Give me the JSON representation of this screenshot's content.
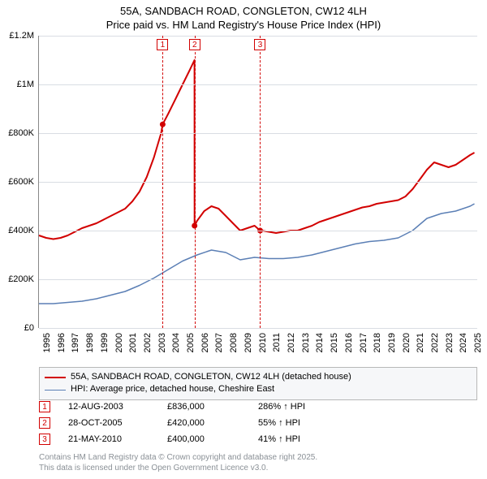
{
  "title": {
    "line1": "55A, SANDBACH ROAD, CONGLETON, CW12 4LH",
    "line2": "Price paid vs. HM Land Registry's House Price Index (HPI)"
  },
  "chart": {
    "type": "line",
    "background_color": "#ffffff",
    "stripe_color": "#edf1f6",
    "grid_color": "#d9dde3",
    "axis_color": "#888888",
    "x": {
      "min": 1995,
      "max": 2025.5,
      "ticks": [
        1995,
        1996,
        1997,
        1998,
        1999,
        2000,
        2001,
        2002,
        2003,
        2004,
        2005,
        2006,
        2007,
        2008,
        2009,
        2010,
        2011,
        2012,
        2013,
        2014,
        2015,
        2016,
        2017,
        2018,
        2019,
        2020,
        2021,
        2022,
        2023,
        2024,
        2025
      ],
      "tick_labels": [
        "1995",
        "1996",
        "1997",
        "1998",
        "1999",
        "2000",
        "2001",
        "2002",
        "2003",
        "2004",
        "2005",
        "2006",
        "2007",
        "2008",
        "2009",
        "2010",
        "2011",
        "2012",
        "2013",
        "2014",
        "2015",
        "2016",
        "2017",
        "2018",
        "2019",
        "2020",
        "2021",
        "2022",
        "2023",
        "2024",
        "2025"
      ],
      "label_fontsize": 11,
      "label_rotation": -90
    },
    "y": {
      "min": 0,
      "max": 1200000,
      "ticks": [
        0,
        200000,
        400000,
        600000,
        800000,
        1000000,
        1200000
      ],
      "tick_labels": [
        "£0",
        "£200K",
        "£400K",
        "£600K",
        "£800K",
        "£1M",
        "£1.2M"
      ],
      "label_fontsize": 11
    },
    "series": [
      {
        "id": "property",
        "label": "55A, SANDBACH ROAD, CONGLETON, CW12 4LH (detached house)",
        "color": "#d20000",
        "line_width": 2,
        "data": [
          [
            1995.0,
            380000
          ],
          [
            1995.5,
            370000
          ],
          [
            1996.0,
            365000
          ],
          [
            1996.5,
            370000
          ],
          [
            1997.0,
            380000
          ],
          [
            1997.5,
            395000
          ],
          [
            1998.0,
            410000
          ],
          [
            1998.5,
            420000
          ],
          [
            1999.0,
            430000
          ],
          [
            1999.5,
            445000
          ],
          [
            2000.0,
            460000
          ],
          [
            2000.5,
            475000
          ],
          [
            2001.0,
            490000
          ],
          [
            2001.5,
            520000
          ],
          [
            2002.0,
            560000
          ],
          [
            2002.5,
            620000
          ],
          [
            2003.0,
            700000
          ],
          [
            2003.5,
            800000
          ],
          [
            2003.61,
            836000
          ],
          [
            2004.0,
            880000
          ],
          [
            2004.5,
            940000
          ],
          [
            2005.0,
            1000000
          ],
          [
            2005.5,
            1060000
          ],
          [
            2005.82,
            1100000
          ],
          [
            2005.83,
            420000
          ],
          [
            2006.0,
            440000
          ],
          [
            2006.5,
            480000
          ],
          [
            2007.0,
            500000
          ],
          [
            2007.5,
            490000
          ],
          [
            2008.0,
            460000
          ],
          [
            2008.5,
            430000
          ],
          [
            2009.0,
            400000
          ],
          [
            2009.5,
            410000
          ],
          [
            2010.0,
            420000
          ],
          [
            2010.39,
            400000
          ],
          [
            2010.5,
            400000
          ],
          [
            2011.0,
            395000
          ],
          [
            2011.5,
            390000
          ],
          [
            2012.0,
            395000
          ],
          [
            2012.5,
            400000
          ],
          [
            2013.0,
            400000
          ],
          [
            2013.5,
            410000
          ],
          [
            2014.0,
            420000
          ],
          [
            2014.5,
            435000
          ],
          [
            2015.0,
            445000
          ],
          [
            2015.5,
            455000
          ],
          [
            2016.0,
            465000
          ],
          [
            2016.5,
            475000
          ],
          [
            2017.0,
            485000
          ],
          [
            2017.5,
            495000
          ],
          [
            2018.0,
            500000
          ],
          [
            2018.5,
            510000
          ],
          [
            2019.0,
            515000
          ],
          [
            2019.5,
            520000
          ],
          [
            2020.0,
            525000
          ],
          [
            2020.5,
            540000
          ],
          [
            2021.0,
            570000
          ],
          [
            2021.5,
            610000
          ],
          [
            2022.0,
            650000
          ],
          [
            2022.5,
            680000
          ],
          [
            2023.0,
            670000
          ],
          [
            2023.5,
            660000
          ],
          [
            2024.0,
            670000
          ],
          [
            2024.5,
            690000
          ],
          [
            2025.0,
            710000
          ],
          [
            2025.3,
            720000
          ]
        ],
        "markers": [
          {
            "x": 2003.61,
            "y": 836000
          },
          {
            "x": 2005.83,
            "y": 420000
          },
          {
            "x": 2010.39,
            "y": 400000
          }
        ]
      },
      {
        "id": "hpi",
        "label": "HPI: Average price, detached house, Cheshire East",
        "color": "#5b7fb5",
        "line_width": 1.5,
        "data": [
          [
            1995.0,
            100000
          ],
          [
            1996.0,
            100000
          ],
          [
            1997.0,
            105000
          ],
          [
            1998.0,
            110000
          ],
          [
            1999.0,
            120000
          ],
          [
            2000.0,
            135000
          ],
          [
            2001.0,
            150000
          ],
          [
            2002.0,
            175000
          ],
          [
            2003.0,
            205000
          ],
          [
            2004.0,
            240000
          ],
          [
            2005.0,
            275000
          ],
          [
            2006.0,
            300000
          ],
          [
            2007.0,
            320000
          ],
          [
            2008.0,
            310000
          ],
          [
            2009.0,
            280000
          ],
          [
            2010.0,
            290000
          ],
          [
            2011.0,
            285000
          ],
          [
            2012.0,
            285000
          ],
          [
            2013.0,
            290000
          ],
          [
            2014.0,
            300000
          ],
          [
            2015.0,
            315000
          ],
          [
            2016.0,
            330000
          ],
          [
            2017.0,
            345000
          ],
          [
            2018.0,
            355000
          ],
          [
            2019.0,
            360000
          ],
          [
            2020.0,
            370000
          ],
          [
            2021.0,
            400000
          ],
          [
            2022.0,
            450000
          ],
          [
            2023.0,
            470000
          ],
          [
            2024.0,
            480000
          ],
          [
            2025.0,
            500000
          ],
          [
            2025.3,
            510000
          ]
        ]
      }
    ],
    "events": [
      {
        "n": "1",
        "x": 2003.61
      },
      {
        "n": "2",
        "x": 2005.83
      },
      {
        "n": "3",
        "x": 2010.39
      }
    ],
    "event_line_color": "#d20000"
  },
  "legend": {
    "border_color": "#b8b8b8",
    "background_color": "#f6f7f9",
    "items": [
      {
        "color": "#d20000",
        "width": 2,
        "label": "55A, SANDBACH ROAD, CONGLETON, CW12 4LH (detached house)"
      },
      {
        "color": "#5b7fb5",
        "width": 1.5,
        "label": "HPI: Average price, detached house, Cheshire East"
      }
    ]
  },
  "event_rows": [
    {
      "n": "1",
      "date": "12-AUG-2003",
      "price": "£836,000",
      "pct": "286% ↑ HPI"
    },
    {
      "n": "2",
      "date": "28-OCT-2005",
      "price": "£420,000",
      "pct": "55% ↑ HPI"
    },
    {
      "n": "3",
      "date": "21-MAY-2010",
      "price": "£400,000",
      "pct": "41% ↑ HPI"
    }
  ],
  "attribution": {
    "line1": "Contains HM Land Registry data © Crown copyright and database right 2025.",
    "line2": "This data is licensed under the Open Government Licence v3.0."
  }
}
